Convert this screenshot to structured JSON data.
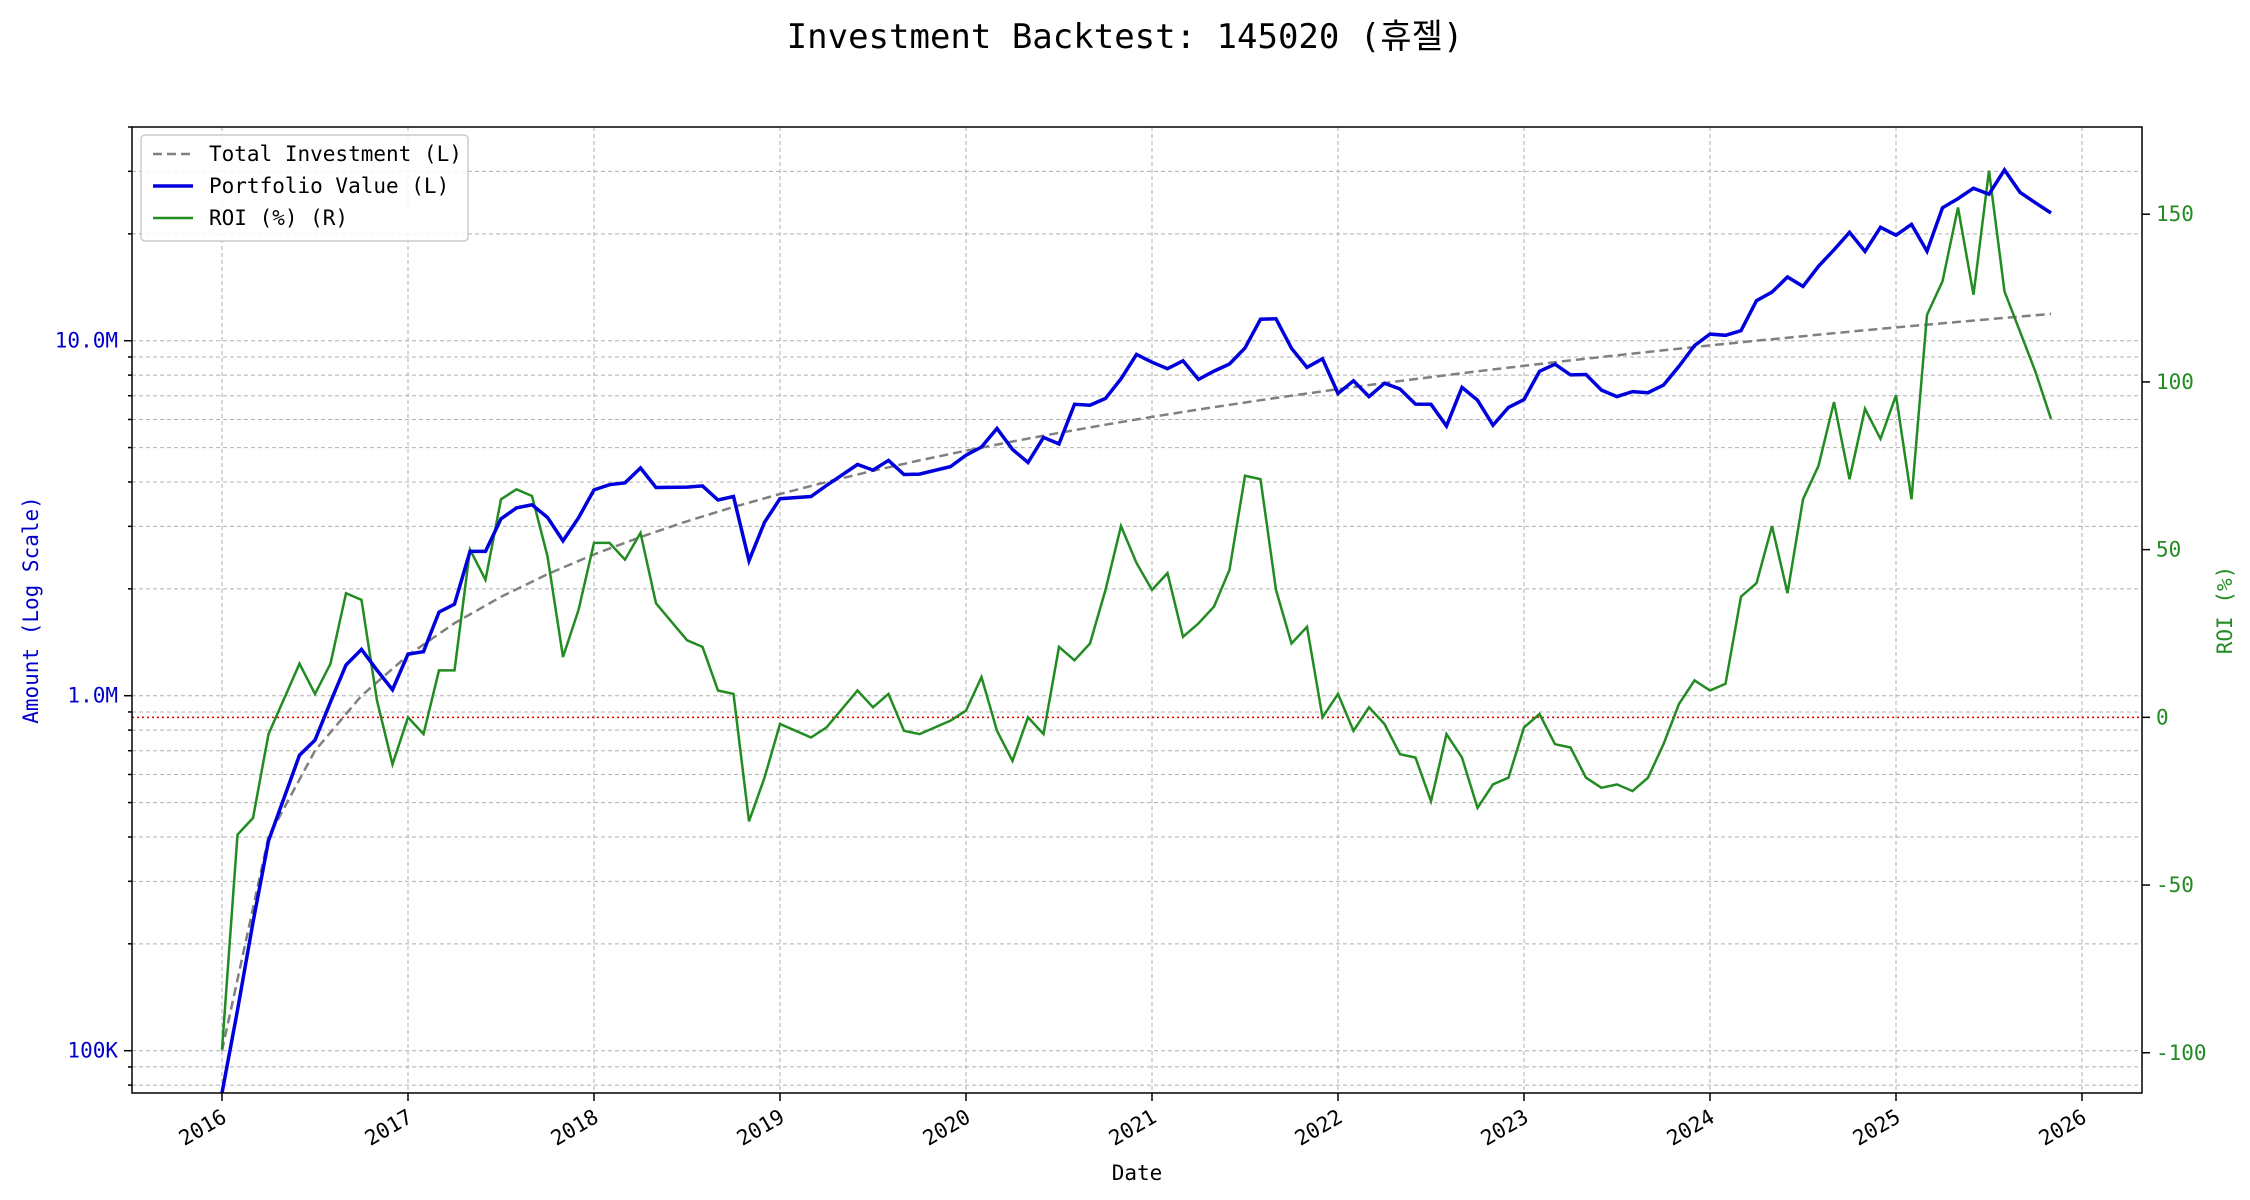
{
  "chart_data": {
    "type": "line",
    "title": "Investment Backtest: 145020 (휴젤)",
    "xlabel": "Date",
    "ylabel_left": "Amount (Log Scale)",
    "ylabel_right": "ROI (%)",
    "y_scale_left": "log",
    "ylim_left": [
      76000,
      40000000
    ],
    "ylim_right": [
      -112,
      176
    ],
    "x_ticks": [
      "2016",
      "2017",
      "2018",
      "2019",
      "2020",
      "2021",
      "2022",
      "2023",
      "2024",
      "2025",
      "2026"
    ],
    "left_ticks": [
      {
        "value": 100000,
        "label": "100K"
      },
      {
        "value": 1000000,
        "label": "1.0M"
      },
      {
        "value": 10000000,
        "label": "10.0M"
      }
    ],
    "right_ticks": [
      -100,
      -50,
      0,
      50,
      100,
      150
    ],
    "grid": true,
    "legend_position": "top-left",
    "reference_line": {
      "roi": 0,
      "color": "#dd0000"
    },
    "colors": {
      "total": "#808080",
      "portfolio": "#0000dd",
      "roi": "#228b22",
      "left_axis": "#0000cc",
      "right_axis": "#228b22"
    },
    "series": [
      {
        "name": "Total Investment (L)",
        "style": "dashed",
        "x": [
          "2016-01",
          "2016-04",
          "2016-07",
          "2016-10",
          "2017-01",
          "2017-04",
          "2017-07",
          "2017-10",
          "2018-01",
          "2018-04",
          "2018-07",
          "2018-10",
          "2019-01",
          "2019-04",
          "2019-07",
          "2019-10",
          "2020-01",
          "2020-04",
          "2020-07",
          "2020-10",
          "2021-01",
          "2021-04",
          "2021-07",
          "2021-10",
          "2022-01",
          "2022-04",
          "2022-07",
          "2022-10",
          "2023-01",
          "2023-04",
          "2023-07",
          "2023-10",
          "2024-01",
          "2024-04",
          "2024-07",
          "2024-10",
          "2025-01",
          "2025-04",
          "2025-07",
          "2025-11"
        ],
        "values": [
          100000,
          400000,
          700000,
          1000000,
          1300000,
          1600000,
          1900000,
          2200000,
          2500000,
          2800000,
          3100000,
          3400000,
          3700000,
          4000000,
          4300000,
          4600000,
          4900000,
          5200000,
          5500000,
          5800000,
          6100000,
          6400000,
          6700000,
          7000000,
          7300000,
          7600000,
          7900000,
          8200000,
          8500000,
          8800000,
          9100000,
          9400000,
          9700000,
          10000000,
          10300000,
          10600000,
          10900000,
          11200000,
          11500000,
          11900000
        ]
      },
      {
        "name": "Portfolio Value (L)",
        "style": "solid",
        "x": [
          "2016-01",
          "2016-02",
          "2016-03",
          "2016-04",
          "2016-06",
          "2016-07",
          "2016-08",
          "2016-09",
          "2016-10",
          "2016-11",
          "2016-12",
          "2017-01",
          "2017-02",
          "2017-03",
          "2017-04",
          "2017-05",
          "2017-06",
          "2017-07",
          "2017-08",
          "2017-09",
          "2017-10",
          "2017-11",
          "2017-12",
          "2018-01",
          "2018-02",
          "2018-03",
          "2018-04",
          "2018-05",
          "2018-07",
          "2018-08",
          "2018-09",
          "2018-10",
          "2018-11",
          "2018-12",
          "2019-01",
          "2019-03",
          "2019-04",
          "2019-06",
          "2019-07",
          "2019-08",
          "2019-09",
          "2019-10",
          "2019-12",
          "2020-01",
          "2020-02",
          "2020-03",
          "2020-04",
          "2020-05",
          "2020-06",
          "2020-07",
          "2020-08",
          "2020-09",
          "2020-10",
          "2020-11",
          "2020-12",
          "2021-01",
          "2021-02",
          "2021-03",
          "2021-04",
          "2021-05",
          "2021-06",
          "2021-07",
          "2021-08",
          "2021-09",
          "2021-10",
          "2021-11",
          "2021-12",
          "2022-01",
          "2022-02",
          "2022-03",
          "2022-04",
          "2022-05",
          "2022-06",
          "2022-07",
          "2022-08",
          "2022-09",
          "2022-10",
          "2022-11",
          "2022-12",
          "2023-01",
          "2023-02",
          "2023-03",
          "2023-04",
          "2023-05",
          "2023-06",
          "2023-07",
          "2023-08",
          "2023-09",
          "2023-10",
          "2023-11",
          "2023-12",
          "2024-01",
          "2024-02",
          "2024-03",
          "2024-04",
          "2024-05",
          "2024-06",
          "2024-07",
          "2024-08",
          "2024-09",
          "2024-10",
          "2024-11",
          "2024-12",
          "2025-01",
          "2025-02",
          "2025-03",
          "2025-04",
          "2025-05",
          "2025-06",
          "2025-07",
          "2025-08",
          "2025-09",
          "2025-10",
          "2025-11"
        ],
        "values": [
          60000,
          130000,
          230000,
          390000,
          680000,
          750000,
          960000,
          1220000,
          1350000,
          1180000,
          1040000,
          1310000,
          1330000,
          1720000,
          1810000,
          2550000,
          2550000,
          3150000,
          3380000,
          3450000,
          3180000,
          2730000,
          3170000,
          3800000,
          3930000,
          3980000,
          4380000,
          3860000,
          3870000,
          3900000,
          3560000,
          3640000,
          2400000,
          3080000,
          3590000,
          3640000,
          3910000,
          4480000,
          4320000,
          4600000,
          4200000,
          4210000,
          4420000,
          4760000,
          5020000,
          5660000,
          4940000,
          4540000,
          5340000,
          5120000,
          6620000,
          6580000,
          6880000,
          7810000,
          9150000,
          8700000,
          8340000,
          8780000,
          7780000,
          8210000,
          8600000,
          9540000,
          11500000,
          11530000,
          9520000,
          8410000,
          8900000,
          7100000,
          7710000,
          6960000,
          7590000,
          7310000,
          6630000,
          6620000,
          5750000,
          7390000,
          6800000,
          5780000,
          6490000,
          6830000,
          8200000,
          8590000,
          8010000,
          8030000,
          7260000,
          6960000,
          7190000,
          7140000,
          7500000,
          8470000,
          9690000,
          10440000,
          10360000,
          10670000,
          12960000,
          13710000,
          15120000,
          14220000,
          16200000,
          18030000,
          20200000,
          17850000,
          20870000,
          19830000,
          21270000,
          17870000,
          23690000,
          25140000,
          26900000,
          25870000,
          30280000,
          26180000,
          24460000,
          22900000
        ]
      },
      {
        "name": "ROI (%) (R)",
        "style": "solid",
        "x": [
          "2016-01",
          "2016-02",
          "2016-03",
          "2016-04",
          "2016-06",
          "2016-07",
          "2016-08",
          "2016-09",
          "2016-10",
          "2016-11",
          "2016-12",
          "2017-01",
          "2017-02",
          "2017-03",
          "2017-04",
          "2017-05",
          "2017-06",
          "2017-07",
          "2017-08",
          "2017-09",
          "2017-10",
          "2017-11",
          "2017-12",
          "2018-01",
          "2018-02",
          "2018-03",
          "2018-04",
          "2018-05",
          "2018-07",
          "2018-08",
          "2018-09",
          "2018-10",
          "2018-11",
          "2018-12",
          "2019-01",
          "2019-03",
          "2019-04",
          "2019-06",
          "2019-07",
          "2019-08",
          "2019-09",
          "2019-10",
          "2019-12",
          "2020-01",
          "2020-02",
          "2020-03",
          "2020-04",
          "2020-05",
          "2020-06",
          "2020-07",
          "2020-08",
          "2020-09",
          "2020-10",
          "2020-11",
          "2020-12",
          "2021-01",
          "2021-02",
          "2021-03",
          "2021-04",
          "2021-05",
          "2021-06",
          "2021-07",
          "2021-08",
          "2021-09",
          "2021-10",
          "2021-11",
          "2021-12",
          "2022-01",
          "2022-02",
          "2022-03",
          "2022-04",
          "2022-05",
          "2022-06",
          "2022-07",
          "2022-08",
          "2022-09",
          "2022-10",
          "2022-11",
          "2022-12",
          "2023-01",
          "2023-02",
          "2023-03",
          "2023-04",
          "2023-05",
          "2023-06",
          "2023-07",
          "2023-08",
          "2023-09",
          "2023-10",
          "2023-11",
          "2023-12",
          "2024-01",
          "2024-02",
          "2024-03",
          "2024-04",
          "2024-05",
          "2024-06",
          "2024-07",
          "2024-08",
          "2024-09",
          "2024-10",
          "2024-11",
          "2024-12",
          "2025-01",
          "2025-02",
          "2025-03",
          "2025-04",
          "2025-05",
          "2025-06",
          "2025-07",
          "2025-08",
          "2025-09",
          "2025-10",
          "2025-11"
        ],
        "values": [
          -99,
          -35,
          -30,
          -5,
          16,
          7,
          16,
          37,
          35,
          5,
          -14,
          0,
          -5,
          14,
          14,
          50,
          41,
          65,
          68,
          66,
          48,
          18,
          32,
          52,
          52,
          47,
          55,
          34,
          23,
          21,
          8,
          7,
          -31,
          -18,
          -2,
          -6,
          -3,
          8,
          3,
          7,
          -4,
          -5,
          -1,
          2,
          12,
          -4,
          -13,
          0,
          -5,
          21,
          17,
          22,
          38,
          57,
          46,
          38,
          43,
          24,
          28,
          33,
          44,
          72,
          71,
          38,
          22,
          27,
          0,
          7,
          -4,
          3,
          -2,
          -11,
          -12,
          -25,
          -5,
          -12,
          -27,
          -20,
          -18,
          -3,
          1,
          -8,
          -9,
          -18,
          -21,
          -20,
          -22,
          -18,
          -8,
          4,
          11,
          8,
          10,
          36,
          40,
          57,
          37,
          65,
          75,
          94,
          71,
          92,
          83,
          96,
          65,
          120,
          130,
          152,
          126,
          163,
          127,
          115,
          103,
          89
        ]
      }
    ]
  }
}
